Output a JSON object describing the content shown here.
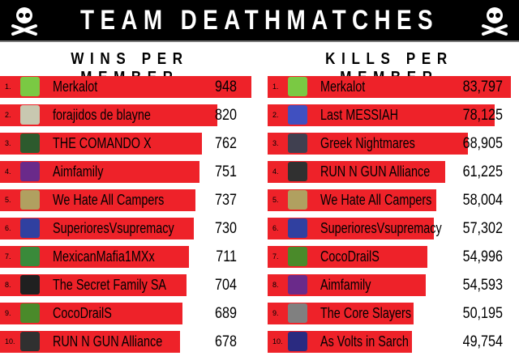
{
  "header": {
    "title": "TEAM DEATHMATCHES"
  },
  "chart_data": [
    {
      "type": "bar",
      "title": "WINS PER MEMBER",
      "orientation": "horizontal",
      "ranks": [
        "1.",
        "2.",
        "3.",
        "4.",
        "5.",
        "6.",
        "7.",
        "8.",
        "9.",
        "10."
      ],
      "categories": [
        "Merkalot",
        "forajidos de blayne",
        "THE COMANDO X",
        "Aimfamily",
        "We Hate All Campers",
        "SuperioresVsupremacy",
        "MexicanMafia1MXx",
        "The Secret Family SA",
        "CocoDrailS",
        "RUN N GUN Alliance"
      ],
      "values": [
        948,
        820,
        762,
        751,
        737,
        730,
        711,
        704,
        689,
        678
      ],
      "labels": [
        "948",
        "820",
        "762",
        "751",
        "737",
        "730",
        "711",
        "704",
        "689",
        "678"
      ],
      "avatar_colors": [
        "#7ac943",
        "#c8c8b0",
        "#2d5a2d",
        "#6a2a8a",
        "#b0a060",
        "#3040a0",
        "#3a8a3a",
        "#202020",
        "#4a8a2a",
        "#303030"
      ],
      "bar_color": "#ee2229"
    },
    {
      "type": "bar",
      "title": "KILLS PER MEMBER",
      "orientation": "horizontal",
      "ranks": [
        "1.",
        "2.",
        "3.",
        "4.",
        "5.",
        "6.",
        "7.",
        "8.",
        "9.",
        "10."
      ],
      "categories": [
        "Merkalot",
        "Last MESSIAH",
        "Greek Nightmares",
        "RUN N GUN Alliance",
        "We Hate All Campers",
        "SuperioresVsupremacy",
        "CocoDrailS",
        "Aimfamily",
        "The Core Slayers",
        "As Volts in Sarch"
      ],
      "values": [
        83797,
        78125,
        68905,
        61225,
        58004,
        57302,
        54996,
        54593,
        50195,
        49754
      ],
      "labels": [
        "83,797",
        "78,125",
        "68,905",
        "61,225",
        "58,004",
        "57,302",
        "54,996",
        "54,593",
        "50,195",
        "49,754"
      ],
      "avatar_colors": [
        "#7ac943",
        "#4050c0",
        "#404050",
        "#303030",
        "#b0a060",
        "#3040a0",
        "#4a8a2a",
        "#6a2a8a",
        "#808080",
        "#2a2a80"
      ],
      "bar_color": "#ee2229"
    }
  ]
}
